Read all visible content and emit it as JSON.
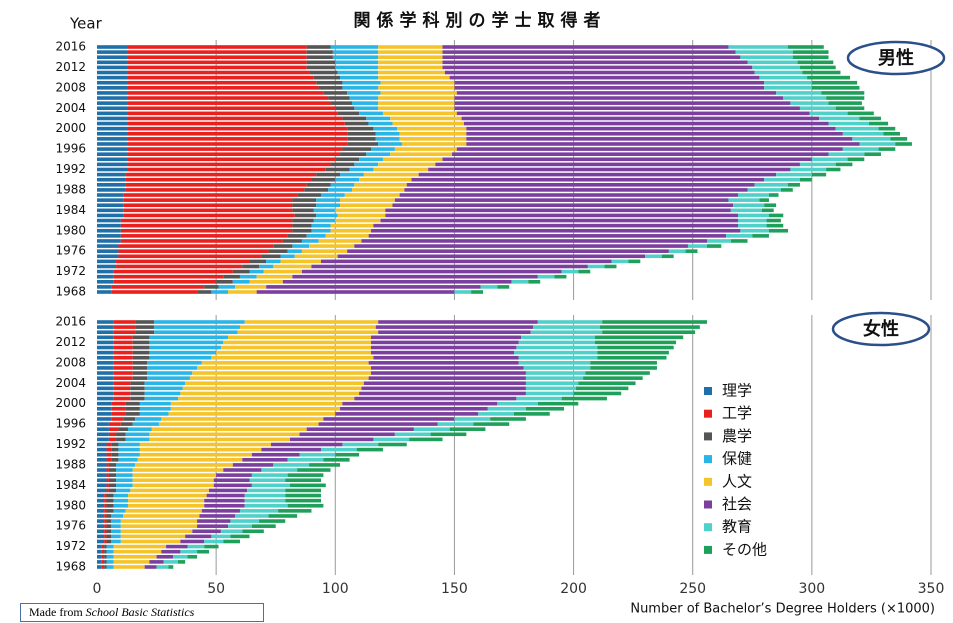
{
  "source": {
    "prefix": "Made from",
    "italic": "School Basic Statistics"
  },
  "chart_data": [
    {
      "type": "stacked_barh",
      "title": "関係学科別の学士取得者",
      "ylabel": "Year",
      "panel_label": "男性",
      "categories": [
        "1968",
        null,
        null,
        null,
        "1972",
        null,
        null,
        null,
        "1976",
        null,
        null,
        null,
        "1980",
        null,
        null,
        null,
        "1984",
        null,
        null,
        null,
        "1988",
        null,
        null,
        null,
        "1992",
        null,
        null,
        null,
        "1996",
        null,
        null,
        null,
        "2000",
        null,
        null,
        null,
        "2004",
        null,
        null,
        null,
        "2008",
        null,
        null,
        null,
        "2012",
        null,
        null,
        null,
        "2016"
      ],
      "xlim": [
        0,
        350
      ],
      "xticks": [
        0,
        50,
        100,
        150,
        200,
        250,
        300,
        350
      ],
      "grid": true,
      "series": [
        {
          "name": "理学",
          "color": "#1f6fa8",
          "values": [
            6,
            6,
            7,
            7,
            7,
            8,
            8,
            9,
            9,
            9,
            10,
            10,
            10,
            10,
            10,
            11,
            11,
            11,
            11,
            11,
            12,
            12,
            12,
            12,
            13,
            13,
            13,
            13,
            13,
            13,
            13,
            13,
            13,
            13,
            13,
            13,
            13,
            13,
            13,
            13,
            13,
            13,
            13,
            13,
            13,
            13,
            13,
            13,
            13
          ]
        },
        {
          "name": "工学",
          "color": "#e8201e",
          "values": [
            36,
            39,
            43,
            46,
            50,
            53,
            56,
            60,
            63,
            65,
            68,
            70,
            72,
            72,
            72,
            72,
            71,
            71,
            71,
            73,
            75,
            76,
            78,
            80,
            83,
            85,
            87,
            89,
            90,
            92,
            92,
            92,
            92,
            91,
            90,
            88,
            87,
            85,
            84,
            82,
            80,
            79,
            78,
            76,
            75,
            75,
            75,
            75,
            75
          ]
        },
        {
          "name": "農学",
          "color": "#555555",
          "values": [
            6,
            6,
            7,
            7,
            7,
            7,
            7,
            8,
            8,
            8,
            8,
            8,
            8,
            8,
            9,
            9,
            9,
            10,
            10,
            10,
            10,
            10,
            10,
            10,
            10,
            10,
            10,
            11,
            12,
            13,
            12,
            12,
            11,
            10,
            10,
            9,
            8,
            9,
            9,
            10,
            10,
            11,
            11,
            12,
            12,
            12,
            11,
            11,
            10
          ]
        },
        {
          "name": "保健",
          "color": "#29b5e6",
          "values": [
            7,
            7,
            7,
            7,
            6,
            6,
            6,
            6,
            6,
            7,
            7,
            8,
            8,
            8,
            9,
            9,
            9,
            10,
            10,
            10,
            10,
            10,
            10,
            10,
            10,
            10,
            10,
            10,
            10,
            10,
            10,
            10,
            10,
            10,
            10,
            10,
            10,
            11,
            12,
            14,
            15,
            16,
            16,
            17,
            18,
            18,
            19,
            19,
            20
          ]
        },
        {
          "name": "人文",
          "color": "#f5c42b",
          "values": [
            12,
            13,
            14,
            15,
            16,
            16,
            17,
            18,
            19,
            19,
            18,
            18,
            17,
            18,
            19,
            20,
            21,
            22,
            23,
            23,
            22,
            22,
            22,
            23,
            23,
            24,
            25,
            26,
            26,
            27,
            28,
            28,
            29,
            30,
            30,
            31,
            32,
            32,
            32,
            32,
            32,
            31,
            30,
            28,
            27,
            27,
            27,
            27,
            27
          ]
        },
        {
          "name": "社会",
          "color": "#7b3f9e",
          "values": [
            83,
            90,
            96,
            103,
            109,
            116,
            122,
            129,
            135,
            140,
            145,
            150,
            155,
            153,
            150,
            148,
            145,
            143,
            140,
            142,
            144,
            146,
            148,
            150,
            152,
            153,
            155,
            158,
            162,
            165,
            162,
            158,
            155,
            153,
            150,
            148,
            145,
            141,
            138,
            134,
            130,
            130,
            130,
            130,
            130,
            128,
            125,
            123,
            120
          ]
        },
        {
          "name": "教育",
          "color": "#4fd0c8",
          "values": [
            7,
            7,
            7,
            7,
            7,
            7,
            7,
            7,
            7,
            8,
            10,
            11,
            12,
            12,
            12,
            13,
            13,
            13,
            13,
            13,
            14,
            14,
            15,
            15,
            15,
            15,
            15,
            15,
            15,
            15,
            16,
            17,
            18,
            17,
            17,
            16,
            15,
            16,
            18,
            19,
            20,
            20,
            20,
            20,
            20,
            21,
            22,
            24,
            25
          ]
        },
        {
          "name": "その他",
          "color": "#1ea05a",
          "values": [
            5,
            5,
            5,
            5,
            5,
            5,
            5,
            5,
            5,
            6,
            7,
            7,
            8,
            7,
            6,
            6,
            5,
            5,
            4,
            4,
            5,
            5,
            5,
            6,
            6,
            7,
            7,
            7,
            7,
            7,
            7,
            7,
            7,
            8,
            9,
            11,
            12,
            14,
            16,
            18,
            20,
            19,
            18,
            16,
            15,
            15,
            15,
            15,
            15
          ]
        }
      ]
    },
    {
      "type": "stacked_barh",
      "panel_label": "女性",
      "xlabel": "Number of Bachelor’s Degree Holders (×1000)",
      "categories": [
        "1968",
        null,
        null,
        null,
        "1972",
        null,
        null,
        null,
        "1976",
        null,
        null,
        null,
        "1980",
        null,
        null,
        null,
        "1984",
        null,
        null,
        null,
        "1988",
        null,
        null,
        null,
        "1992",
        null,
        null,
        null,
        "1996",
        null,
        null,
        null,
        "2000",
        null,
        null,
        null,
        "2004",
        null,
        null,
        null,
        "2008",
        null,
        null,
        null,
        "2012",
        null,
        null,
        null,
        "2016"
      ],
      "xlim": [
        0,
        350
      ],
      "xticks": [
        0,
        50,
        100,
        150,
        200,
        250,
        300,
        350
      ],
      "grid": true,
      "series": [
        {
          "color": "#1f6fa8",
          "values": [
            2,
            2,
            2,
            2,
            2,
            3,
            3,
            3,
            3,
            3,
            3,
            3,
            3,
            3,
            3,
            4,
            4,
            4,
            4,
            4,
            4,
            4,
            4,
            4,
            4,
            5,
            5,
            5,
            5,
            6,
            6,
            6,
            6,
            7,
            7,
            7,
            7,
            7,
            7,
            7,
            7,
            7,
            7,
            7,
            7,
            7,
            7,
            7,
            7
          ]
        },
        {
          "color": "#e8201e",
          "values": [
            1,
            1,
            1,
            1,
            1,
            1,
            1,
            1,
            1,
            1,
            1,
            1,
            1,
            1,
            1,
            1,
            1,
            1,
            1,
            1,
            1,
            2,
            2,
            2,
            2,
            3,
            3,
            4,
            5,
            5,
            6,
            6,
            6,
            7,
            7,
            7,
            7,
            8,
            8,
            8,
            8,
            8,
            8,
            8,
            8,
            8,
            9,
            9,
            9
          ]
        },
        {
          "color": "#555555",
          "values": [
            1,
            1,
            1,
            1,
            1,
            2,
            2,
            2,
            2,
            2,
            2,
            3,
            3,
            3,
            3,
            3,
            3,
            3,
            3,
            3,
            3,
            3,
            3,
            3,
            3,
            4,
            4,
            4,
            5,
            5,
            6,
            6,
            6,
            6,
            6,
            6,
            6,
            6,
            6,
            6,
            6,
            7,
            7,
            7,
            7,
            7,
            8,
            8,
            8
          ]
        },
        {
          "color": "#29b5e6",
          "values": [
            3,
            3,
            3,
            3,
            3,
            4,
            4,
            4,
            4,
            4,
            5,
            5,
            6,
            6,
            6,
            6,
            7,
            7,
            7,
            7,
            8,
            8,
            9,
            9,
            9,
            10,
            10,
            10,
            11,
            11,
            12,
            13,
            13,
            14,
            15,
            16,
            17,
            18,
            19,
            21,
            23,
            26,
            28,
            30,
            31,
            33,
            35,
            36,
            38
          ]
        },
        {
          "color": "#f5c42b",
          "values": [
            13,
            15,
            18,
            20,
            22,
            25,
            27,
            30,
            32,
            32,
            32,
            32,
            32,
            32,
            33,
            33,
            34,
            34,
            35,
            38,
            41,
            44,
            47,
            51,
            55,
            59,
            63,
            65,
            67,
            68,
            70,
            71,
            72,
            74,
            75,
            75,
            75,
            75,
            75,
            73,
            70,
            68,
            65,
            63,
            62,
            60,
            59,
            57,
            56
          ]
        },
        {
          "color": "#7b3f9e",
          "values": [
            5,
            6,
            7,
            8,
            9,
            10,
            11,
            12,
            13,
            14,
            15,
            16,
            17,
            17,
            16,
            16,
            16,
            15,
            15,
            16,
            17,
            19,
            20,
            25,
            30,
            35,
            40,
            45,
            50,
            55,
            60,
            62,
            65,
            68,
            70,
            69,
            68,
            66,
            65,
            64,
            63,
            61,
            60,
            61,
            62,
            63,
            64,
            66,
            67
          ]
        },
        {
          "color": "#4fd0c8",
          "values": [
            5,
            6,
            6,
            7,
            7,
            8,
            8,
            9,
            10,
            12,
            14,
            16,
            18,
            17,
            17,
            16,
            16,
            15,
            15,
            15,
            15,
            15,
            15,
            15,
            15,
            15,
            15,
            15,
            15,
            15,
            15,
            16,
            17,
            19,
            20,
            21,
            22,
            24,
            25,
            28,
            30,
            33,
            35,
            34,
            32,
            31,
            30,
            28,
            27
          ]
        },
        {
          "color": "#1ea05a",
          "values": [
            2,
            3,
            4,
            5,
            6,
            7,
            8,
            9,
            10,
            11,
            12,
            14,
            15,
            15,
            15,
            15,
            15,
            15,
            15,
            14,
            13,
            11,
            10,
            11,
            12,
            14,
            15,
            15,
            15,
            15,
            15,
            16,
            17,
            19,
            20,
            22,
            24,
            25,
            27,
            28,
            28,
            29,
            30,
            32,
            34,
            37,
            39,
            42,
            44
          ]
        }
      ]
    }
  ]
}
